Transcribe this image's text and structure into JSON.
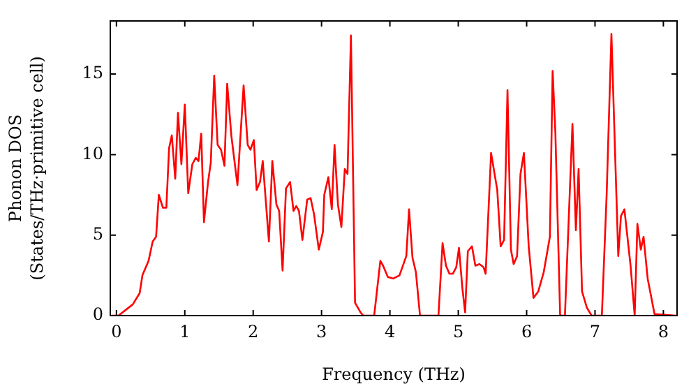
{
  "chart_data": {
    "type": "line",
    "xlabel": "Frequency (THz)",
    "ylabel": "Phonon DOS\n(States/THz·primitive cell)",
    "xlim": [
      -0.09,
      8.2
    ],
    "ylim": [
      0,
      18.3
    ],
    "xticks": [
      0,
      1,
      2,
      3,
      4,
      5,
      6,
      7,
      8
    ],
    "yticks": [
      0,
      5,
      10,
      15
    ],
    "grid": false,
    "legend": false,
    "marker": "none",
    "line_style": "solid",
    "series": [
      {
        "color": "#ff0000",
        "x": [
          -0.07,
          0.03,
          0.24,
          0.34,
          0.38,
          0.47,
          0.53,
          0.58,
          0.62,
          0.68,
          0.73,
          0.77,
          0.81,
          0.86,
          0.9,
          0.95,
          1.0,
          1.05,
          1.11,
          1.16,
          1.2,
          1.24,
          1.28,
          1.34,
          1.38,
          1.43,
          1.48,
          1.53,
          1.58,
          1.62,
          1.68,
          1.77,
          1.86,
          1.92,
          1.96,
          2.01,
          2.05,
          2.1,
          2.14,
          2.23,
          2.28,
          2.34,
          2.38,
          2.43,
          2.48,
          2.54,
          2.59,
          2.63,
          2.67,
          2.72,
          2.79,
          2.84,
          2.89,
          2.96,
          3.02,
          3.04,
          3.1,
          3.15,
          3.19,
          3.24,
          3.29,
          3.34,
          3.38,
          3.43,
          3.49,
          3.57,
          3.61,
          3.77,
          3.86,
          3.9,
          3.97,
          4.05,
          4.14,
          4.24,
          4.28,
          4.33,
          4.38,
          4.44,
          4.71,
          4.77,
          4.82,
          4.87,
          4.92,
          4.97,
          5.01,
          5.06,
          5.1,
          5.14,
          5.2,
          5.25,
          5.31,
          5.37,
          5.4,
          5.48,
          5.57,
          5.62,
          5.67,
          5.72,
          5.77,
          5.81,
          5.86,
          5.91,
          5.96,
          6.03,
          6.1,
          6.17,
          6.25,
          6.34,
          6.38,
          6.42,
          6.49,
          6.56,
          6.67,
          6.72,
          6.76,
          6.81,
          6.88,
          6.95,
          7.1,
          7.17,
          7.24,
          7.34,
          7.38,
          7.43,
          7.52,
          7.58,
          7.62,
          7.67,
          7.71,
          7.77,
          7.87,
          8.18
        ],
        "values": [
          0,
          0,
          0.7,
          1.4,
          2.5,
          3.4,
          4.6,
          4.9,
          7.5,
          6.7,
          6.7,
          10.4,
          11.2,
          8.5,
          12.6,
          9.4,
          13.1,
          7.6,
          9.4,
          9.8,
          9.6,
          11.3,
          5.8,
          8.3,
          9.5,
          14.9,
          10.6,
          10.3,
          9.3,
          14.4,
          11.2,
          8.1,
          14.3,
          10.6,
          10.3,
          10.9,
          7.8,
          8.3,
          9.6,
          4.6,
          9.6,
          6.9,
          6.5,
          2.8,
          7.9,
          8.3,
          6.5,
          6.8,
          6.5,
          4.7,
          7.2,
          7.3,
          6.3,
          4.1,
          5.2,
          7.5,
          8.6,
          6.6,
          10.6,
          6.9,
          5.5,
          9.1,
          8.8,
          17.4,
          0.8,
          0.2,
          0,
          0,
          3.4,
          3.1,
          2.4,
          2.3,
          2.5,
          3.7,
          6.6,
          3.6,
          2.7,
          0,
          0,
          4.5,
          3.1,
          2.6,
          2.6,
          3.0,
          4.2,
          1.7,
          0.2,
          4.0,
          4.3,
          3.1,
          3.2,
          3.0,
          2.6,
          10.1,
          7.8,
          4.3,
          4.7,
          14.0,
          4.1,
          3.2,
          3.7,
          8.8,
          10.1,
          4.3,
          1.1,
          1.5,
          2.7,
          4.9,
          15.2,
          11.4,
          0,
          0,
          11.9,
          5.3,
          9.1,
          1.5,
          0.5,
          0,
          0,
          7.5,
          17.5,
          3.7,
          6.2,
          6.6,
          3.1,
          0,
          5.7,
          4.1,
          4.9,
          2.3,
          0.1,
          0
        ]
      }
    ]
  }
}
